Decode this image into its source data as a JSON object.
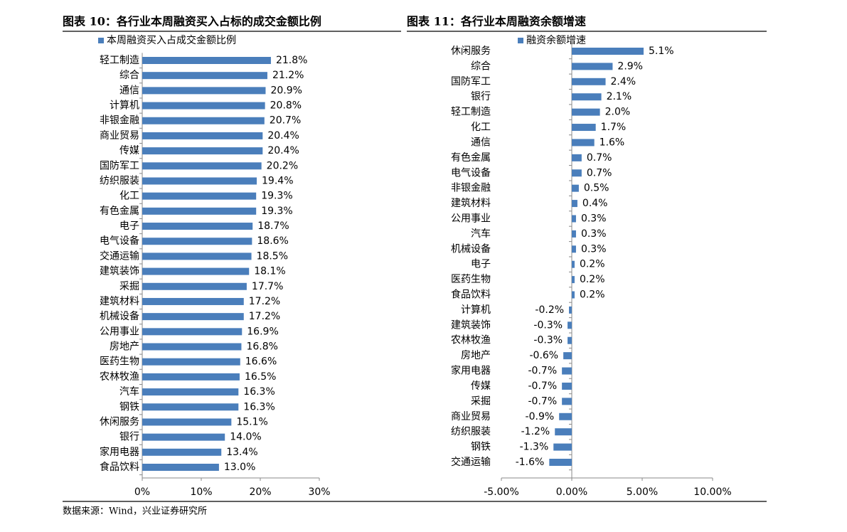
{
  "chart_data": [
    {
      "type": "bar",
      "orientation": "horizontal",
      "title": "图表 10：各行业本周融资买入占标的成交金额比例",
      "categories": [
        "轻工制造",
        "综合",
        "通信",
        "计算机",
        "非银金融",
        "商业贸易",
        "传媒",
        "国防军工",
        "纺织服装",
        "化工",
        "有色金属",
        "电子",
        "电气设备",
        "交通运输",
        "建筑装饰",
        "采掘",
        "建筑材料",
        "机械设备",
        "公用事业",
        "房地产",
        "医药生物",
        "农林牧渔",
        "汽车",
        "钢铁",
        "休闲服务",
        "银行",
        "家用电器",
        "食品饮料"
      ],
      "series": [
        {
          "name": "本周融资买入占成交金额比例",
          "color": "#4a7ebb",
          "values": [
            21.8,
            21.2,
            20.9,
            20.8,
            20.7,
            20.4,
            20.4,
            20.2,
            19.4,
            19.3,
            19.3,
            18.7,
            18.6,
            18.5,
            18.1,
            17.7,
            17.2,
            17.2,
            16.9,
            16.8,
            16.6,
            16.5,
            16.3,
            16.3,
            15.1,
            14.0,
            13.4,
            13.0
          ],
          "value_labels": [
            "21.8%",
            "21.2%",
            "20.9%",
            "20.8%",
            "20.7%",
            "20.4%",
            "20.4%",
            "20.2%",
            "19.4%",
            "19.3%",
            "19.3%",
            "18.7%",
            "18.6%",
            "18.5%",
            "18.1%",
            "17.7%",
            "17.2%",
            "17.2%",
            "16.9%",
            "16.8%",
            "16.6%",
            "16.5%",
            "16.3%",
            "16.3%",
            "15.1%",
            "14.0%",
            "13.4%",
            "13.0%"
          ]
        }
      ],
      "xlim": [
        0,
        30
      ],
      "xticks": [
        {
          "value": 0,
          "label": "0%"
        },
        {
          "value": 10,
          "label": "10%"
        },
        {
          "value": 20,
          "label": "20%"
        },
        {
          "value": 30,
          "label": "30%"
        }
      ]
    },
    {
      "type": "bar",
      "orientation": "horizontal",
      "title": "图表 11：各行业本周融资余额增速",
      "categories": [
        "休闲服务",
        "综合",
        "国防军工",
        "银行",
        "轻工制造",
        "化工",
        "通信",
        "有色金属",
        "电气设备",
        "非银金融",
        "建筑材料",
        "公用事业",
        "汽车",
        "机械设备",
        "电子",
        "医药生物",
        "食品饮料",
        "计算机",
        "建筑装饰",
        "农林牧渔",
        "房地产",
        "家用电器",
        "传媒",
        "采掘",
        "商业贸易",
        "纺织服装",
        "钢铁",
        "交通运输"
      ],
      "series": [
        {
          "name": "融资余额增速",
          "color": "#4a7ebb",
          "values": [
            5.1,
            2.9,
            2.4,
            2.1,
            2.0,
            1.7,
            1.6,
            0.7,
            0.7,
            0.5,
            0.4,
            0.3,
            0.3,
            0.3,
            0.2,
            0.2,
            0.2,
            -0.2,
            -0.3,
            -0.3,
            -0.6,
            -0.7,
            -0.7,
            -0.7,
            -0.9,
            -1.2,
            -1.3,
            -1.6
          ],
          "value_labels": [
            "5.1%",
            "2.9%",
            "2.4%",
            "2.1%",
            "2.0%",
            "1.7%",
            "1.6%",
            "0.7%",
            "0.7%",
            "0.5%",
            "0.4%",
            "0.3%",
            "0.3%",
            "0.3%",
            "0.2%",
            "0.2%",
            "0.2%",
            "-0.2%",
            "-0.3%",
            "-0.3%",
            "-0.6%",
            "-0.7%",
            "-0.7%",
            "-0.7%",
            "-0.9%",
            "-1.2%",
            "-1.3%",
            "-1.6%"
          ]
        }
      ],
      "xlim": [
        -5,
        10
      ],
      "xticks": [
        {
          "value": -5,
          "label": "-5.00%"
        },
        {
          "value": 0,
          "label": "0.00%"
        },
        {
          "value": 5,
          "label": "5.00%"
        },
        {
          "value": 10,
          "label": "10.00%"
        }
      ]
    }
  ],
  "source": "数据来源：Wind，兴业证券研究所"
}
